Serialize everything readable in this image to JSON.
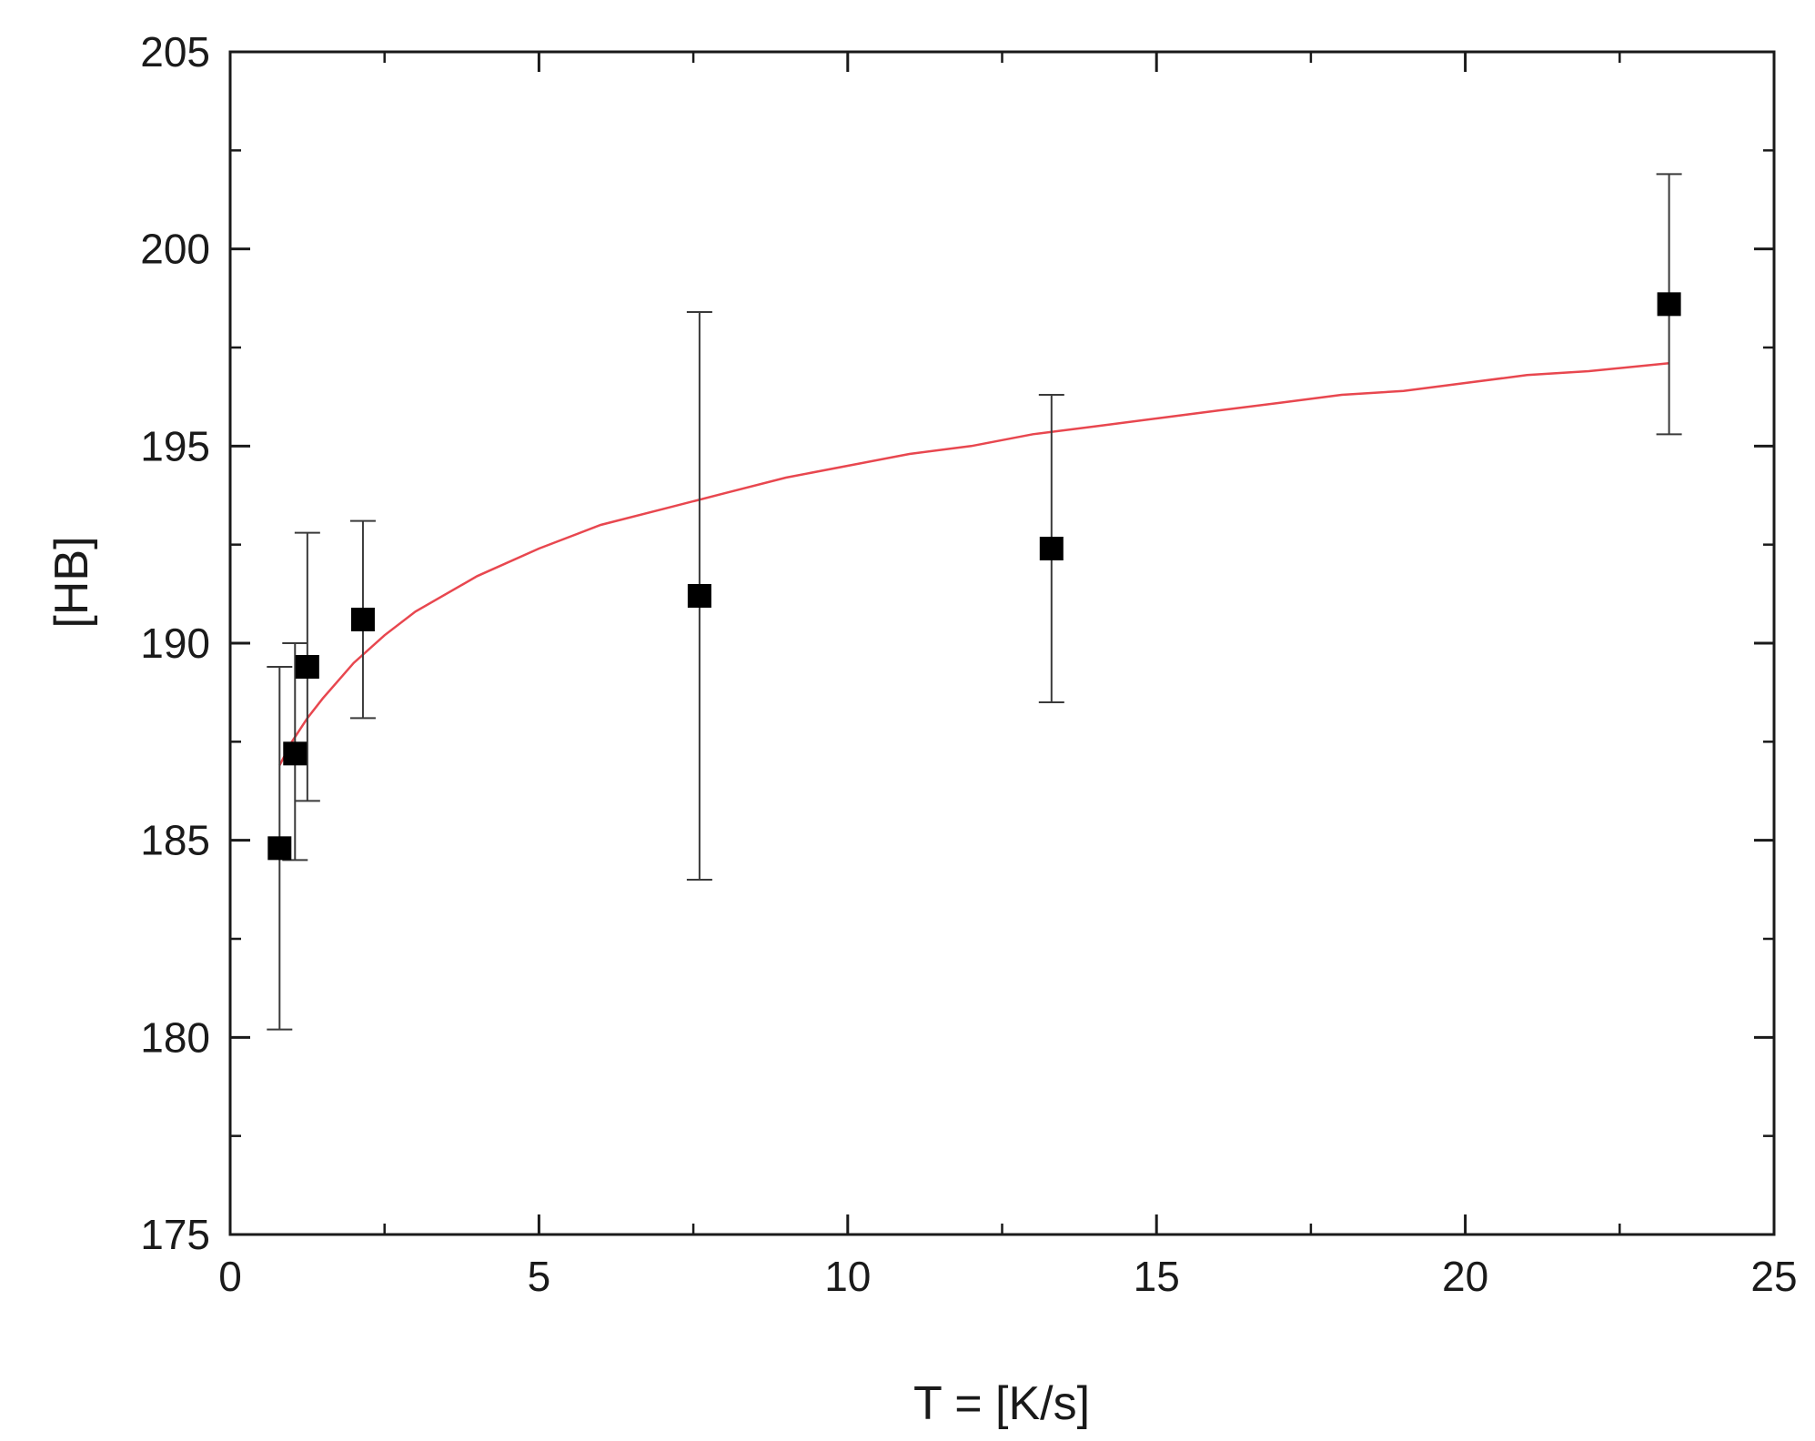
{
  "chart_data": {
    "type": "scatter",
    "title": "",
    "xlabel": "T = [K/s]",
    "ylabel": "[HB]",
    "xlim": [
      0,
      25
    ],
    "ylim": [
      175,
      205
    ],
    "x_ticks": [
      "0",
      "5",
      "10",
      "15",
      "20",
      "25"
    ],
    "y_ticks": [
      "175",
      "180",
      "185",
      "190",
      "195",
      "200",
      "205"
    ],
    "grid": false,
    "legend": "none",
    "series": [
      {
        "kind": "points-with-error-bars",
        "marker": "square",
        "color": "#000000",
        "points": [
          {
            "x": 0.8,
            "y": 184.8,
            "y_low": 180.2,
            "y_high": 189.4
          },
          {
            "x": 1.05,
            "y": 187.2,
            "y_low": 184.5,
            "y_high": 190.0
          },
          {
            "x": 1.25,
            "y": 189.4,
            "y_low": 186.0,
            "y_high": 192.8
          },
          {
            "x": 2.15,
            "y": 190.6,
            "y_low": 188.1,
            "y_high": 193.1
          },
          {
            "x": 7.6,
            "y": 191.2,
            "y_low": 184.0,
            "y_high": 198.4
          },
          {
            "x": 13.3,
            "y": 192.4,
            "y_low": 188.5,
            "y_high": 196.3
          },
          {
            "x": 23.3,
            "y": 198.6,
            "y_low": 195.3,
            "y_high": 201.9
          }
        ]
      },
      {
        "kind": "fit-curve",
        "color": "#e8474f",
        "x": [
          0.8,
          1.0,
          1.25,
          1.5,
          2.0,
          2.5,
          3.0,
          4.0,
          5.0,
          6.0,
          7.0,
          8.0,
          9.0,
          10.0,
          11.0,
          12.0,
          13.0,
          14.0,
          15.0,
          16.0,
          17.0,
          18.0,
          19.0,
          20.0,
          21.0,
          22.0,
          23.3
        ],
        "y": [
          186.9,
          187.5,
          188.1,
          188.6,
          189.5,
          190.2,
          190.8,
          191.7,
          192.4,
          193.0,
          193.4,
          193.8,
          194.2,
          194.5,
          194.8,
          195.0,
          195.3,
          195.5,
          195.7,
          195.9,
          196.1,
          196.3,
          196.4,
          196.6,
          196.8,
          196.9,
          197.1
        ]
      }
    ]
  }
}
